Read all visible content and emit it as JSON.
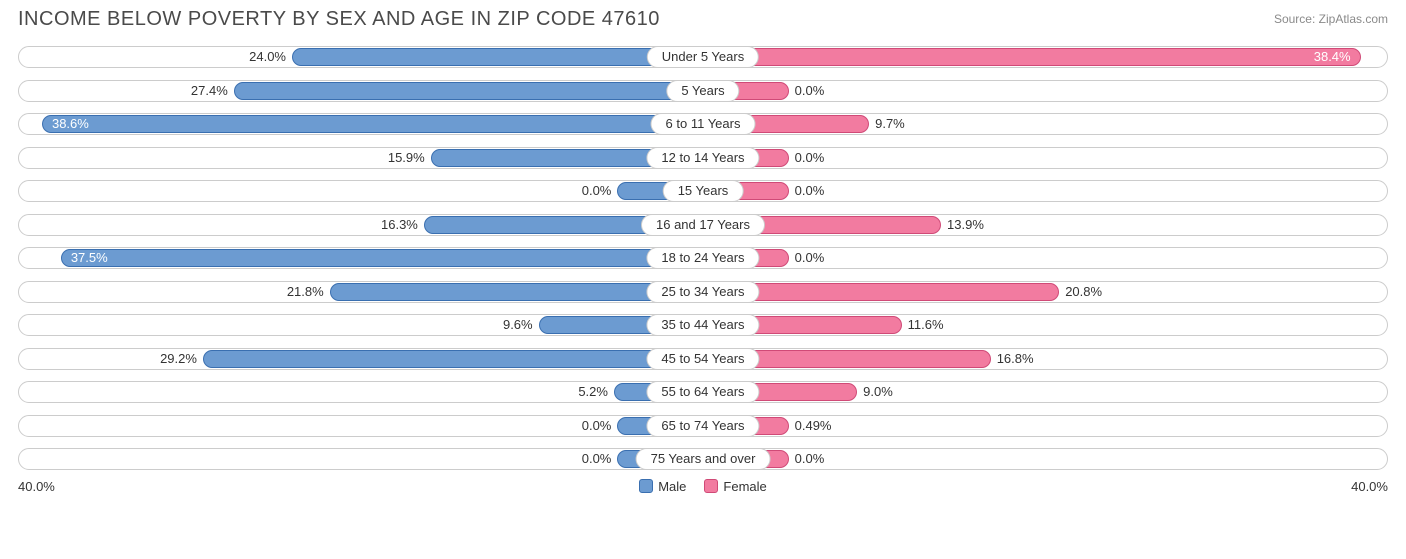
{
  "title": "INCOME BELOW POVERTY BY SEX AND AGE IN ZIP CODE 47610",
  "source": "Source: ZipAtlas.com",
  "axis_max": 40.0,
  "axis_left_label": "40.0%",
  "axis_right_label": "40.0%",
  "min_bar_pct": 5.0,
  "colors": {
    "male_fill": "#6c9bd1",
    "male_stroke": "#3a6fb0",
    "female_fill": "#f27ba0",
    "female_stroke": "#d04a77",
    "track_border": "#cccccc",
    "text": "#333333",
    "title_text": "#4a4a4a",
    "source_text": "#8a8a8a"
  },
  "legend": {
    "male": "Male",
    "female": "Female"
  },
  "rows": [
    {
      "category": "Under 5 Years",
      "male": 24.0,
      "female": 38.4,
      "male_label": "24.0%",
      "female_label": "38.4%"
    },
    {
      "category": "5 Years",
      "male": 27.4,
      "female": 0.0,
      "male_label": "27.4%",
      "female_label": "0.0%"
    },
    {
      "category": "6 to 11 Years",
      "male": 38.6,
      "female": 9.7,
      "male_label": "38.6%",
      "female_label": "9.7%"
    },
    {
      "category": "12 to 14 Years",
      "male": 15.9,
      "female": 0.0,
      "male_label": "15.9%",
      "female_label": "0.0%"
    },
    {
      "category": "15 Years",
      "male": 0.0,
      "female": 0.0,
      "male_label": "0.0%",
      "female_label": "0.0%"
    },
    {
      "category": "16 and 17 Years",
      "male": 16.3,
      "female": 13.9,
      "male_label": "16.3%",
      "female_label": "13.9%"
    },
    {
      "category": "18 to 24 Years",
      "male": 37.5,
      "female": 0.0,
      "male_label": "37.5%",
      "female_label": "0.0%"
    },
    {
      "category": "25 to 34 Years",
      "male": 21.8,
      "female": 20.8,
      "male_label": "21.8%",
      "female_label": "20.8%"
    },
    {
      "category": "35 to 44 Years",
      "male": 9.6,
      "female": 11.6,
      "male_label": "9.6%",
      "female_label": "11.6%"
    },
    {
      "category": "45 to 54 Years",
      "male": 29.2,
      "female": 16.8,
      "male_label": "29.2%",
      "female_label": "16.8%"
    },
    {
      "category": "55 to 64 Years",
      "male": 5.2,
      "female": 9.0,
      "male_label": "5.2%",
      "female_label": "9.0%"
    },
    {
      "category": "65 to 74 Years",
      "male": 0.0,
      "female": 0.49,
      "male_label": "0.0%",
      "female_label": "0.49%"
    },
    {
      "category": "75 Years and over",
      "male": 0.0,
      "female": 0.0,
      "male_label": "0.0%",
      "female_label": "0.0%"
    }
  ]
}
